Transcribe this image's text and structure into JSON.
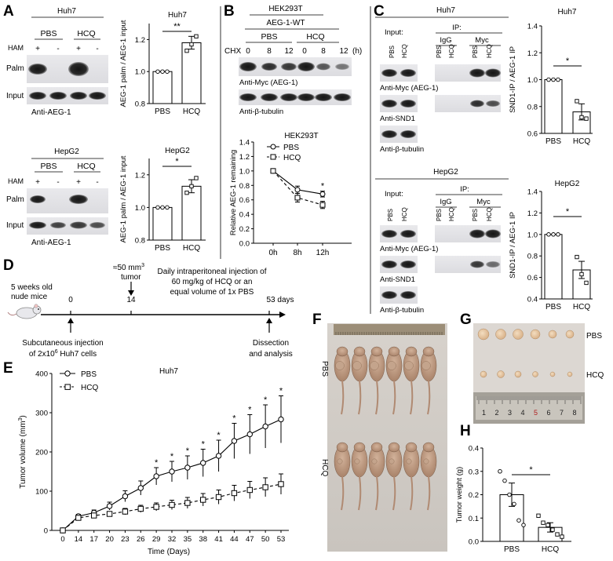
{
  "panels": {
    "A": {
      "letter": "A",
      "huh7": {
        "cell_line": "Huh7",
        "groups": [
          "PBS",
          "HCQ"
        ],
        "ham_label": "HAM",
        "ham_signs": [
          "+",
          "-",
          "+",
          "-"
        ],
        "row_labels": [
          "Palm",
          "Input"
        ],
        "antibody": "Anti-AEG-1"
      },
      "hepg2": {
        "cell_line": "HepG2",
        "groups": [
          "PBS",
          "HCQ"
        ],
        "ham_label": "HAM",
        "ham_signs": [
          "+",
          "-",
          "+",
          "-"
        ],
        "row_labels": [
          "Palm",
          "Input"
        ],
        "antibody": "Anti-AEG-1"
      }
    },
    "B": {
      "letter": "B",
      "cell_line": "HEK293T",
      "construct": "AEG-1-WT",
      "groups": [
        "PBS",
        "HCQ"
      ],
      "chx_label": "CHX",
      "time_labels": [
        "0",
        "8",
        "12",
        "0",
        "8",
        "12"
      ],
      "time_unit": "(h)",
      "antibodies": [
        "Anti-Myc (AEG-1)",
        "Anti-β-tubulin"
      ]
    },
    "C": {
      "letter": "C",
      "huh7": {
        "cell_line": "Huh7",
        "input_label": "Input:",
        "ip_label": "IP:",
        "igg_label": "IgG",
        "myc_label": "Myc",
        "lane_labels": [
          "PBS",
          "HCQ",
          "PBS",
          "HCQ",
          "PBS",
          "HCQ"
        ],
        "antibodies": [
          "Anti-Myc (AEG-1)",
          "Anti-SND1",
          "Anti-β-tubulin"
        ]
      },
      "hepg2": {
        "cell_line": "HepG2",
        "input_label": "Input:",
        "ip_label": "IP:",
        "igg_label": "IgG",
        "myc_label": "Myc",
        "lane_labels": [
          "PBS",
          "HCQ",
          "PBS",
          "HCQ",
          "PBS",
          "HCQ"
        ],
        "antibodies": [
          "Anti-Myc (AEG-1)",
          "Anti-SND1",
          "Anti-β-tubulin"
        ]
      }
    },
    "D": {
      "letter": "D",
      "mice": "5 weeks old",
      "mice2": "nude mice",
      "tumor_size": "≈50 mm",
      "tumor_sup": "3",
      "tumor_word": "tumor",
      "treatment_lines": [
        "Daily intraperitoneal injection of",
        "60 mg/kg of HCQ or an",
        "equal volume of 1x PBS"
      ],
      "day_start": "0",
      "day_mid": "14",
      "day_end": "53 days",
      "injection_line1": "Subcutaneous injection",
      "injection_line2a": "of 2x10",
      "injection_sup": "6",
      "injection_line2b": " Huh7 cells",
      "dissection_line1": "Dissection",
      "dissection_line2": "and analysis"
    },
    "F": {
      "letter": "F",
      "groups": [
        "PBS",
        "HCQ"
      ]
    },
    "G": {
      "letter": "G",
      "groups": [
        "PBS",
        "HCQ"
      ],
      "ruler_numbers": [
        "1",
        "2",
        "3",
        "4",
        "5",
        "6",
        "7",
        "8"
      ]
    },
    "E": {
      "letter": "E"
    },
    "H": {
      "letter": "H"
    }
  },
  "chart_data": [
    {
      "id": "A-huh7-bar",
      "type": "bar",
      "title": "Huh7",
      "ylabel": "AEG-1 palm / AEG-1 input",
      "categories": [
        "PBS",
        "HCQ"
      ],
      "values": [
        1.0,
        1.18
      ],
      "errors": [
        0.0,
        0.04
      ],
      "points": [
        [
          1.0,
          1.0,
          1.0
        ],
        [
          1.13,
          1.17,
          1.22
        ]
      ],
      "ylim": [
        0.8,
        1.3
      ],
      "yticks": [
        "0.8",
        "1.0",
        "1.2"
      ],
      "significance": "**"
    },
    {
      "id": "A-hepg2-bar",
      "type": "bar",
      "title": "HepG2",
      "ylabel": "AEG-1 palm / AEG-1 input",
      "categories": [
        "PBS",
        "HCQ"
      ],
      "values": [
        1.0,
        1.13
      ],
      "errors": [
        0.0,
        0.04
      ],
      "points": [
        [
          1.0,
          1.0,
          1.0
        ],
        [
          1.09,
          1.13,
          1.18
        ]
      ],
      "ylim": [
        0.8,
        1.3
      ],
      "yticks": [
        "0.8",
        "1.0",
        "1.2"
      ],
      "significance": "*"
    },
    {
      "id": "B-line",
      "type": "line",
      "title": "HEK293T",
      "ylabel": "Relative AEG-1 remaining",
      "categories": [
        "0h",
        "8h",
        "12h"
      ],
      "series": [
        {
          "name": "PBS",
          "values": [
            1.0,
            0.74,
            0.68
          ],
          "errors": [
            0.0,
            0.05,
            0.04
          ]
        },
        {
          "name": "HCQ",
          "values": [
            1.0,
            0.63,
            0.53
          ],
          "errors": [
            0.0,
            0.06,
            0.05
          ]
        }
      ],
      "ylim": [
        0.0,
        1.4
      ],
      "yticks": [
        "0.0",
        "0.2",
        "0.4",
        "0.6",
        "0.8",
        "1.0",
        "1.2",
        "1.4"
      ],
      "significance": [
        "",
        "",
        "*"
      ]
    },
    {
      "id": "C-huh7-bar",
      "type": "bar",
      "title": "Huh7",
      "ylabel": "SND1-IP / AEG-1 IP",
      "categories": [
        "PBS",
        "HCQ"
      ],
      "values": [
        1.0,
        0.76
      ],
      "errors": [
        0.0,
        0.06
      ],
      "points": [
        [
          1.0,
          1.0,
          1.0
        ],
        [
          0.84,
          0.72,
          0.71
        ]
      ],
      "ylim": [
        0.6,
        1.4
      ],
      "yticks": [
        "0.6",
        "0.8",
        "1.0",
        "1.2",
        "1.4"
      ],
      "significance": "*"
    },
    {
      "id": "C-hepg2-bar",
      "type": "bar",
      "title": "HepG2",
      "ylabel": "SND1-IP / AEG-1 IP",
      "categories": [
        "PBS",
        "HCQ"
      ],
      "values": [
        1.0,
        0.67
      ],
      "errors": [
        0.0,
        0.08
      ],
      "points": [
        [
          1.0,
          1.0,
          1.0
        ],
        [
          0.79,
          0.63,
          0.55
        ]
      ],
      "ylim": [
        0.4,
        1.4
      ],
      "yticks": [
        "0.4",
        "0.6",
        "0.8",
        "1.0",
        "1.2",
        "1.4"
      ],
      "significance": "*"
    },
    {
      "id": "E-line",
      "type": "line",
      "title": "Huh7",
      "xlabel": "Time (Days)",
      "ylabel": "Tumor volume (mm",
      "ylabel_sup": "3",
      "ylabel_end": ")",
      "categories": [
        "0",
        "14",
        "17",
        "20",
        "23",
        "26",
        "29",
        "32",
        "35",
        "38",
        "41",
        "44",
        "47",
        "50",
        "53"
      ],
      "series": [
        {
          "name": "PBS",
          "values": [
            0,
            36,
            45,
            62,
            87,
            108,
            138,
            150,
            160,
            172,
            190,
            228,
            245,
            265,
            283
          ],
          "errors": [
            0,
            5,
            7,
            10,
            14,
            18,
            22,
            26,
            30,
            35,
            40,
            45,
            50,
            55,
            60
          ]
        },
        {
          "name": "HCQ",
          "values": [
            0,
            32,
            38,
            42,
            48,
            55,
            60,
            65,
            70,
            78,
            85,
            95,
            103,
            110,
            118
          ],
          "errors": [
            0,
            4,
            5,
            6,
            8,
            9,
            10,
            12,
            14,
            16,
            18,
            20,
            22,
            24,
            26
          ]
        }
      ],
      "ylim": [
        0,
        400
      ],
      "yticks": [
        "0",
        "100",
        "200",
        "300",
        "400"
      ],
      "significance": [
        "",
        "",
        "",
        "",
        "",
        "",
        "*",
        "*",
        "*",
        "*",
        "*",
        "*",
        "*",
        "*",
        "*"
      ]
    },
    {
      "id": "H-bar",
      "type": "bar",
      "ylabel": "Tumor weight (g)",
      "categories": [
        "PBS",
        "HCQ"
      ],
      "values": [
        0.2,
        0.06
      ],
      "errors": [
        0.05,
        0.02
      ],
      "points": [
        [
          0.3,
          0.26,
          0.2,
          0.16,
          0.09,
          0.07
        ],
        [
          0.11,
          0.08,
          0.07,
          0.05,
          0.03,
          0.02
        ]
      ],
      "ylim": [
        0.0,
        0.4
      ],
      "yticks": [
        "0.0",
        "0.1",
        "0.2",
        "0.3",
        "0.4"
      ],
      "significance": "*"
    }
  ]
}
